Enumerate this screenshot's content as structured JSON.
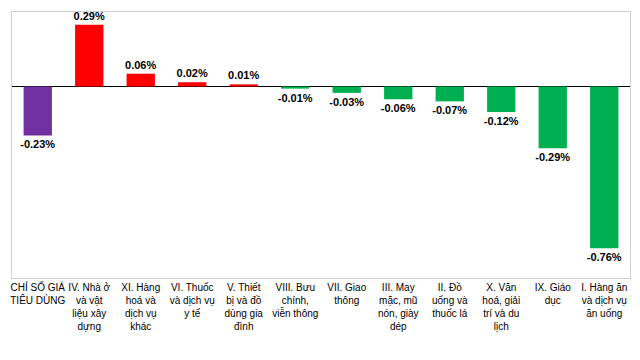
{
  "chart_data": {
    "type": "bar",
    "categories": [
      "CHỈ SỐ GIÁ TIÊU DÙNG",
      "IV. Nhà ở và vật liệu xây dựng",
      "XI. Hàng hoá và dịch vụ khác",
      "VI. Thuốc và dịch vụ y tế",
      "V. Thiết bị và đồ dùng gia đình",
      "VIII. Bưu chính, viễn thông",
      "VII. Giao thông",
      "III. May mặc, mũ nón, giày dép",
      "II. Đồ uống và thuốc lá",
      "X. Văn hoá, giải trí và du lịch",
      "IX. Giáo dục",
      "I. Hàng ăn và dịch vụ ăn uống"
    ],
    "values": [
      -0.23,
      0.29,
      0.06,
      0.02,
      0.01,
      -0.01,
      -0.03,
      -0.06,
      -0.07,
      -0.12,
      -0.29,
      -0.76
    ],
    "value_labels": [
      "-0.23%",
      "0.29%",
      "0.06%",
      "0.02%",
      "0.01%",
      "-0.01%",
      "-0.03%",
      "-0.06%",
      "-0.07%",
      "-0.12%",
      "-0.29%",
      "-0.76%"
    ],
    "colors": [
      "#7030a0",
      "#ff0000",
      "#ff0000",
      "#ff0000",
      "#ff0000",
      "#00b050",
      "#00b050",
      "#00b050",
      "#00b050",
      "#00b050",
      "#00b050",
      "#00b050"
    ],
    "ylim": [
      -0.9,
      0.35
    ],
    "grid": false,
    "data_labels": true,
    "tick_labels": "x"
  }
}
